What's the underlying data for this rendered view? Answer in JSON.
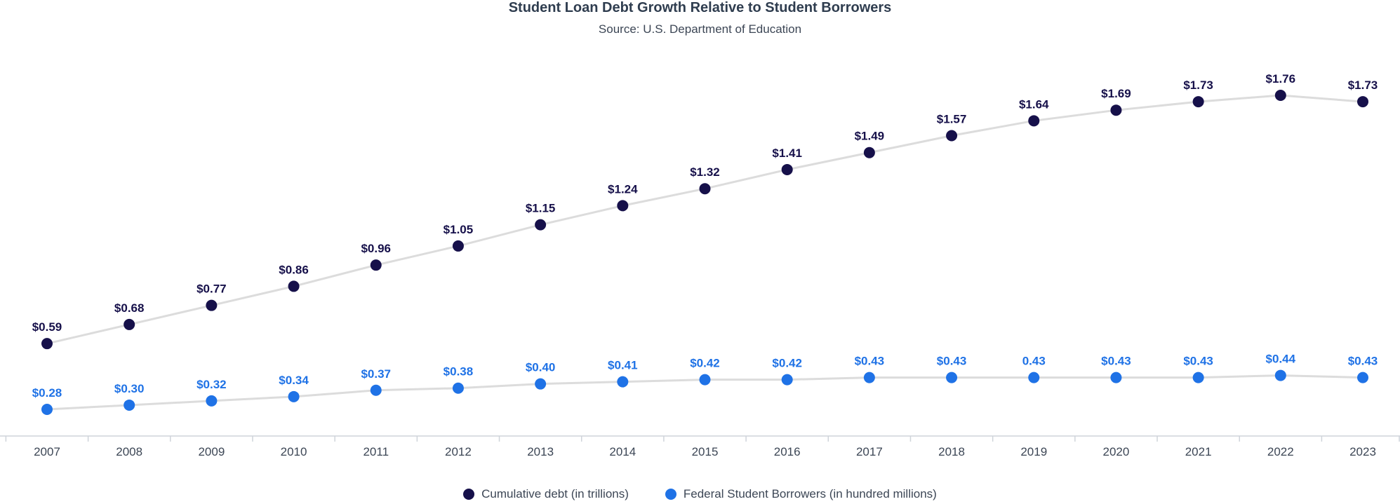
{
  "chart_data": {
    "type": "line",
    "title": "Student  Loan Debt Growth Relative to Student Borrowers",
    "subtitle": "Source: U.S. Department of Education",
    "xlabel": "",
    "ylabel": "",
    "categories": [
      "2007",
      "2008",
      "2009",
      "2010",
      "2011",
      "2012",
      "2013",
      "2014",
      "2015",
      "2016",
      "2017",
      "2018",
      "2019",
      "2020",
      "2021",
      "2022",
      "2023"
    ],
    "ylim": [
      0,
      2.0
    ],
    "grid": false,
    "legend_position": "bottom-center",
    "series": [
      {
        "name": "Cumulative debt (in trillions)",
        "color": "#16104a",
        "values": [
          0.59,
          0.68,
          0.77,
          0.86,
          0.96,
          1.05,
          1.15,
          1.24,
          1.32,
          1.41,
          1.49,
          1.57,
          1.64,
          1.69,
          1.73,
          1.76,
          1.73
        ],
        "labels": [
          "$0.59",
          "$0.68",
          "$0.77",
          "$0.86",
          "$0.96",
          "$1.05",
          "$1.15",
          "$1.24",
          "$1.32",
          "$1.41",
          "$1.49",
          "$1.57",
          "$1.64",
          "$1.69",
          "$1.73",
          "$1.76",
          "$1.73"
        ]
      },
      {
        "name": "Federal Student Borrowers (in hundred millions)",
        "color": "#1f72e6",
        "values": [
          0.28,
          0.3,
          0.32,
          0.34,
          0.37,
          0.38,
          0.4,
          0.41,
          0.42,
          0.42,
          0.43,
          0.43,
          0.43,
          0.43,
          0.43,
          0.44,
          0.43
        ],
        "labels": [
          "$0.28",
          "$0.30",
          "$0.32",
          "$0.34",
          "$0.37",
          "$0.38",
          "$0.40",
          "$0.41",
          "$0.42",
          "$0.42",
          "$0.43",
          "$0.43",
          "0.43",
          "$0.43",
          "$0.43",
          "$0.44",
          "$0.43"
        ]
      }
    ]
  }
}
